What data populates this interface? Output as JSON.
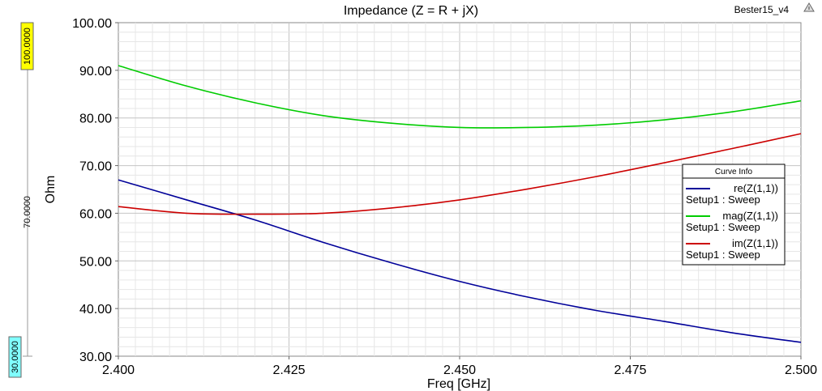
{
  "window": {
    "project_name": "Bester15_v4"
  },
  "range_marker": {
    "max_label": "100.0000",
    "mid_label": "70.0000",
    "min_label": "30.0000",
    "max_color": "#ffff00",
    "min_color": "#80ffff"
  },
  "legend": {
    "title": "Curve Info",
    "placement": "right",
    "entries": [
      {
        "line1": "re(Z(1,1))",
        "line2": "Setup1 : Sweep",
        "color": "#000099"
      },
      {
        "line1": "mag(Z(1,1))",
        "line2": "Setup1 : Sweep",
        "color": "#00cc00"
      },
      {
        "line1": "im(Z(1,1))",
        "line2": "Setup1 : Sweep",
        "color": "#cc0000"
      }
    ]
  },
  "chart_data": {
    "type": "line",
    "title": "Impedance (Z = R + jX)",
    "xlabel": "Freq [GHz]",
    "ylabel": "Ohm",
    "xlim": [
      2.4,
      2.5
    ],
    "ylim": [
      30,
      100
    ],
    "xticks": [
      "2.400",
      "2.425",
      "2.450",
      "2.475",
      "2.500"
    ],
    "yticks": [
      "30.00",
      "40.00",
      "50.00",
      "60.00",
      "70.00",
      "80.00",
      "90.00",
      "100.00"
    ],
    "grid": true,
    "x": [
      2.4,
      2.41,
      2.42,
      2.43,
      2.44,
      2.45,
      2.46,
      2.47,
      2.48,
      2.49,
      2.5
    ],
    "series": [
      {
        "name": "re(Z(1,1))",
        "color": "#000099",
        "values": [
          67.0,
          62.8,
          58.6,
          53.9,
          49.6,
          45.7,
          42.4,
          39.6,
          37.3,
          34.9,
          32.9
        ]
      },
      {
        "name": "mag(Z(1,1))",
        "color": "#00cc00",
        "values": [
          91.0,
          86.7,
          83.2,
          80.5,
          78.9,
          78.0,
          78.0,
          78.5,
          79.6,
          81.3,
          83.6
        ]
      },
      {
        "name": "im(Z(1,1))",
        "color": "#cc0000",
        "values": [
          61.4,
          60.0,
          59.8,
          60.0,
          61.1,
          62.8,
          65.1,
          67.7,
          70.6,
          73.6,
          76.7
        ]
      }
    ]
  }
}
